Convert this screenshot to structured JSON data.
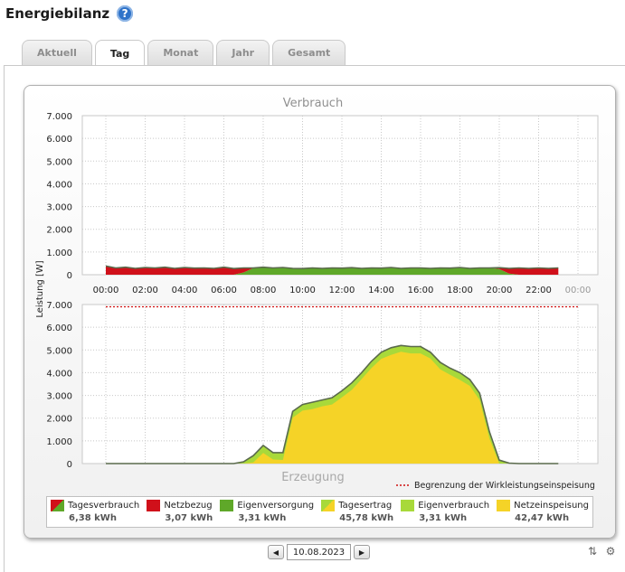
{
  "header": {
    "title": "Energiebilanz",
    "help_icon": "help-icon"
  },
  "tabs": [
    {
      "label": "Aktuell",
      "active": false
    },
    {
      "label": "Tag",
      "active": true
    },
    {
      "label": "Monat",
      "active": false
    },
    {
      "label": "Jahr",
      "active": false
    },
    {
      "label": "Gesamt",
      "active": false
    }
  ],
  "chart_data": [
    {
      "type": "area",
      "title": "Verbrauch",
      "ylabel": "Leistung [W]",
      "ylim": [
        0,
        7000
      ],
      "y_ticks": [
        "7.000",
        "6.000",
        "5.000",
        "4.000",
        "3.000",
        "2.000",
        "1.000",
        "0"
      ],
      "x_ticks": [
        "00:00",
        "02:00",
        "04:00",
        "06:00",
        "08:00",
        "10:00",
        "12:00",
        "14:00",
        "16:00",
        "18:00",
        "20:00",
        "22:00",
        "00:00"
      ],
      "x_hours": [
        0,
        0.5,
        1,
        1.5,
        2,
        2.5,
        3,
        3.5,
        4,
        4.5,
        5,
        5.5,
        6,
        6.5,
        7,
        7.5,
        8,
        8.5,
        9,
        9.5,
        10,
        10.5,
        11,
        11.5,
        12,
        12.5,
        13,
        13.5,
        14,
        14.5,
        15,
        15.5,
        16,
        16.5,
        17,
        17.5,
        18,
        18.5,
        19,
        19.5,
        20,
        20.5,
        21,
        21.5,
        22,
        22.5,
        23
      ],
      "series": [
        {
          "name": "Tagesverbrauch",
          "values": [
            380,
            300,
            330,
            280,
            320,
            300,
            330,
            280,
            320,
            290,
            300,
            280,
            330,
            270,
            300,
            300,
            330,
            300,
            320,
            280,
            270,
            300,
            280,
            300,
            290,
            310,
            280,
            300,
            290,
            320,
            280,
            300,
            300,
            280,
            300,
            290,
            320,
            280,
            300,
            300,
            310,
            280,
            300,
            280,
            300,
            280,
            300
          ]
        },
        {
          "name": "Eigenversorgung",
          "values": [
            0,
            0,
            0,
            0,
            0,
            0,
            0,
            0,
            0,
            0,
            0,
            0,
            0,
            0,
            100,
            290,
            330,
            300,
            320,
            280,
            270,
            300,
            280,
            300,
            290,
            310,
            280,
            300,
            290,
            320,
            280,
            300,
            300,
            280,
            300,
            290,
            320,
            280,
            300,
            300,
            250,
            50,
            0,
            0,
            0,
            0,
            0
          ]
        },
        {
          "name": "Netzbezug",
          "values": [
            380,
            300,
            330,
            280,
            320,
            300,
            330,
            280,
            320,
            290,
            300,
            280,
            330,
            270,
            200,
            10,
            0,
            0,
            0,
            0,
            0,
            0,
            0,
            0,
            0,
            0,
            0,
            0,
            0,
            0,
            0,
            0,
            0,
            0,
            0,
            0,
            0,
            0,
            0,
            0,
            60,
            230,
            300,
            280,
            300,
            280,
            300
          ]
        }
      ]
    },
    {
      "type": "area",
      "title": "Erzeugung",
      "ylabel": "Leistung [W]",
      "ylim": [
        0,
        7000
      ],
      "y_ticks": [
        "7.000",
        "6.000",
        "5.000",
        "4.000",
        "3.000",
        "2.000",
        "1.000",
        "0"
      ],
      "limit_line": {
        "label": "Begrenzung der Wirkleistungseinspeisung",
        "value": 6900
      },
      "x_hours": [
        0,
        1,
        2,
        3,
        4,
        5,
        6,
        6.5,
        7,
        7.5,
        8,
        8.5,
        9,
        9.5,
        10,
        10.5,
        11,
        11.5,
        12,
        12.5,
        13,
        13.5,
        14,
        14.5,
        15,
        15.5,
        16,
        16.5,
        17,
        17.5,
        18,
        18.5,
        19,
        19.5,
        20,
        20.5,
        21,
        21.5,
        22,
        23
      ],
      "series": [
        {
          "name": "Tagesertrag",
          "values": [
            0,
            0,
            0,
            0,
            0,
            0,
            0,
            0,
            80,
            350,
            800,
            480,
            480,
            2300,
            2600,
            2700,
            2800,
            2900,
            3200,
            3550,
            4000,
            4500,
            4900,
            5100,
            5200,
            5150,
            5150,
            4900,
            4450,
            4200,
            4000,
            3700,
            3100,
            1400,
            150,
            20,
            0,
            0,
            0,
            0
          ]
        },
        {
          "name": "Eigenverbrauch",
          "values": [
            0,
            0,
            0,
            0,
            0,
            0,
            0,
            0,
            80,
            300,
            330,
            300,
            320,
            280,
            270,
            300,
            280,
            300,
            290,
            310,
            280,
            300,
            290,
            320,
            280,
            300,
            300,
            280,
            300,
            290,
            320,
            280,
            300,
            300,
            150,
            20,
            0,
            0,
            0,
            0
          ]
        },
        {
          "name": "Netzeinspeisung",
          "values": [
            0,
            0,
            0,
            0,
            0,
            0,
            0,
            0,
            0,
            50,
            470,
            180,
            160,
            2020,
            2330,
            2400,
            2520,
            2600,
            2910,
            3240,
            3720,
            4200,
            4610,
            4780,
            4920,
            4850,
            4850,
            4620,
            4150,
            3910,
            3680,
            3420,
            2800,
            1100,
            0,
            0,
            0,
            0,
            0,
            0
          ]
        }
      ]
    }
  ],
  "legend": [
    {
      "label": "Tagesverbrauch",
      "value": "6,38 kWh",
      "swatch": "split-red-green"
    },
    {
      "label": "Netzbezug",
      "value": "3,07 kWh",
      "swatch": "red"
    },
    {
      "label": "Eigenversorgung",
      "value": "3,31 kWh",
      "swatch": "green"
    },
    {
      "label": "Tagesertrag",
      "value": "45,78 kWh",
      "swatch": "split-lime-yellow"
    },
    {
      "label": "Eigenverbrauch",
      "value": "3,31 kWh",
      "swatch": "lime"
    },
    {
      "label": "Netzeinspeisung",
      "value": "42,47 kWh",
      "swatch": "yellow"
    }
  ],
  "colors": {
    "netzbezug": "#d0101a",
    "eigenversorgung": "#5fa829",
    "eigenverbrauch": "#a8d93a",
    "netzeinspeisung": "#f5d327",
    "outline": "#5a6a4c",
    "limit": "#d01010",
    "help": "#2f73c9"
  },
  "date_nav": {
    "date": "10.08.2023",
    "prev_icon": "arrow-left-icon",
    "next_icon": "arrow-right-icon"
  },
  "corner_icons": [
    "sort-icon",
    "settings-icon"
  ]
}
